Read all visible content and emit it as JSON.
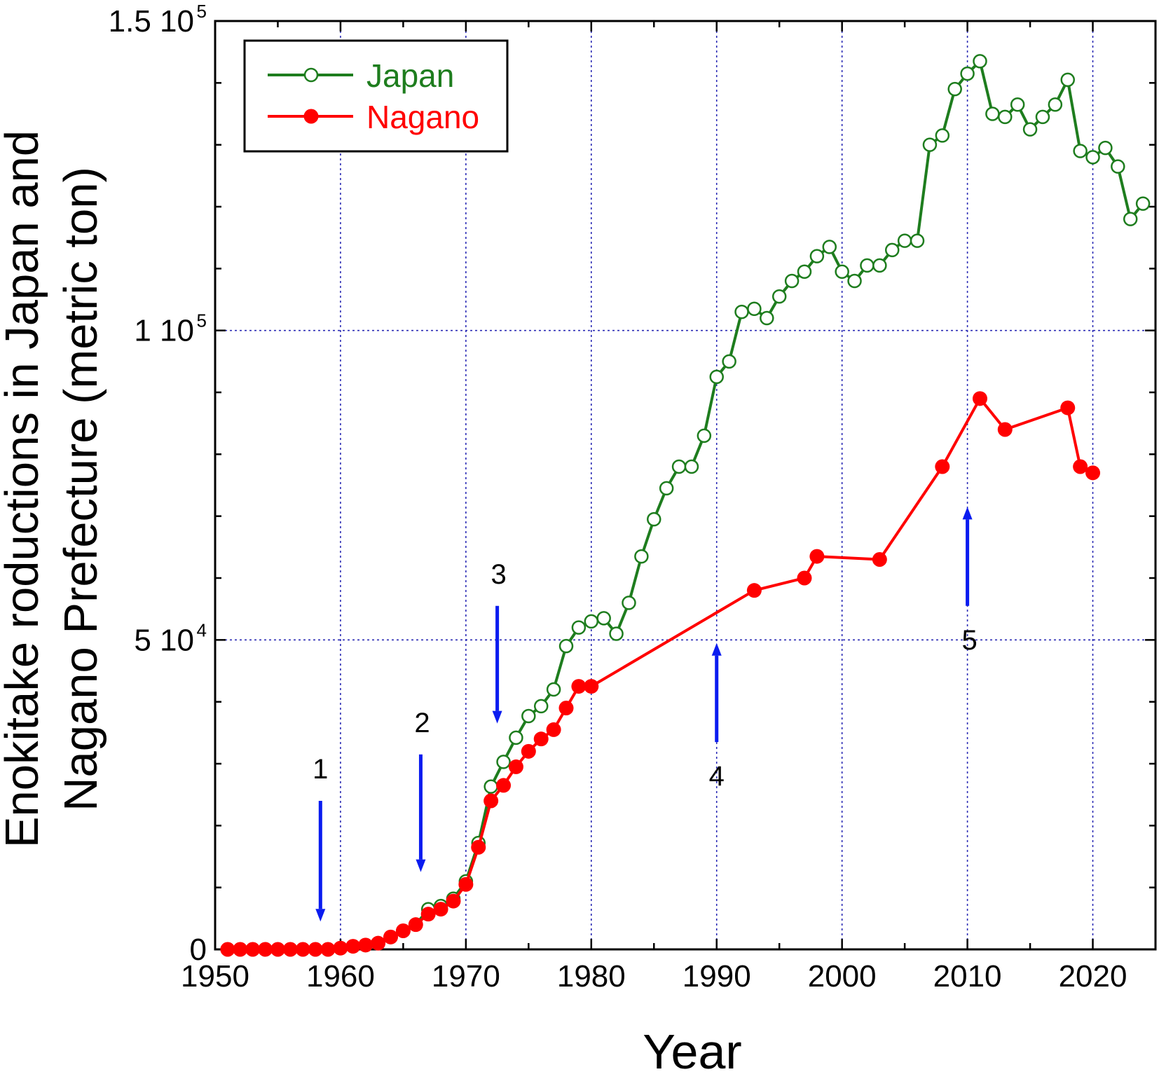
{
  "chart_data": {
    "type": "line",
    "xlabel": "Year",
    "ylabel_line1": "Enokitake roductions in Japan and",
    "ylabel_line2": "Nagano Prefecture (metric ton)",
    "xlim": [
      1950,
      2025
    ],
    "ylim": [
      0,
      150000
    ],
    "x_ticks": [
      1950,
      1960,
      1970,
      1980,
      1990,
      2000,
      2010,
      2020
    ],
    "y_ticks": [
      {
        "value": 0,
        "mantissa": "0",
        "exponent": ""
      },
      {
        "value": 50000,
        "mantissa": "5 10",
        "exponent": "4"
      },
      {
        "value": 100000,
        "mantissa": "1 10",
        "exponent": "5"
      },
      {
        "value": 150000,
        "mantissa": "1.5 10",
        "exponent": "5"
      }
    ],
    "grid": true,
    "legend_position": "top-left",
    "series": [
      {
        "name": "Japan",
        "color": "#1e7d1e",
        "marker": "open-circle",
        "points": [
          [
            1951,
            0
          ],
          [
            1952,
            0
          ],
          [
            1953,
            0
          ],
          [
            1954,
            0
          ],
          [
            1955,
            0
          ],
          [
            1956,
            0
          ],
          [
            1957,
            0
          ],
          [
            1958,
            0
          ],
          [
            1959,
            0
          ],
          [
            1960,
            200
          ],
          [
            1961,
            500
          ],
          [
            1962,
            700
          ],
          [
            1963,
            1000
          ],
          [
            1964,
            2000
          ],
          [
            1965,
            3000
          ],
          [
            1966,
            4000
          ],
          [
            1967,
            6500
          ],
          [
            1968,
            7000
          ],
          [
            1969,
            8200
          ],
          [
            1970,
            11000
          ],
          [
            1971,
            17200
          ],
          [
            1972,
            26300
          ],
          [
            1973,
            30300
          ],
          [
            1974,
            34200
          ],
          [
            1975,
            37700
          ],
          [
            1976,
            39300
          ],
          [
            1977,
            42000
          ],
          [
            1978,
            49000
          ],
          [
            1979,
            52000
          ],
          [
            1980,
            53000
          ],
          [
            1981,
            53500
          ],
          [
            1982,
            51000
          ],
          [
            1983,
            56000
          ],
          [
            1984,
            63500
          ],
          [
            1985,
            69500
          ],
          [
            1986,
            74500
          ],
          [
            1987,
            78000
          ],
          [
            1988,
            78000
          ],
          [
            1989,
            83000
          ],
          [
            1990,
            92500
          ],
          [
            1991,
            95000
          ],
          [
            1992,
            103000
          ],
          [
            1993,
            103500
          ],
          [
            1994,
            102000
          ],
          [
            1995,
            105500
          ],
          [
            1996,
            108000
          ],
          [
            1997,
            109500
          ],
          [
            1998,
            112000
          ],
          [
            1999,
            113500
          ],
          [
            2000,
            109500
          ],
          [
            2001,
            108000
          ],
          [
            2002,
            110500
          ],
          [
            2003,
            110500
          ],
          [
            2004,
            113000
          ],
          [
            2005,
            114500
          ],
          [
            2006,
            114500
          ],
          [
            2007,
            130000
          ],
          [
            2008,
            131500
          ],
          [
            2009,
            139000
          ],
          [
            2010,
            141500
          ],
          [
            2011,
            143500
          ],
          [
            2012,
            135000
          ],
          [
            2013,
            134500
          ],
          [
            2014,
            136500
          ],
          [
            2015,
            132500
          ],
          [
            2016,
            134500
          ],
          [
            2017,
            136500
          ],
          [
            2018,
            140500
          ],
          [
            2019,
            129000
          ],
          [
            2020,
            128000
          ],
          [
            2021,
            129500
          ],
          [
            2022,
            126500
          ],
          [
            2023,
            118000
          ],
          [
            2024,
            120500
          ]
        ]
      },
      {
        "name": "Nagano",
        "color": "#ff0000",
        "marker": "filled-circle",
        "points": [
          [
            1951,
            0
          ],
          [
            1952,
            0
          ],
          [
            1953,
            0
          ],
          [
            1954,
            0
          ],
          [
            1955,
            0
          ],
          [
            1956,
            0
          ],
          [
            1957,
            0
          ],
          [
            1958,
            0
          ],
          [
            1959,
            0
          ],
          [
            1960,
            200
          ],
          [
            1961,
            500
          ],
          [
            1962,
            700
          ],
          [
            1963,
            1000
          ],
          [
            1964,
            2000
          ],
          [
            1965,
            3000
          ],
          [
            1966,
            4000
          ],
          [
            1967,
            5700
          ],
          [
            1968,
            6500
          ],
          [
            1969,
            7800
          ],
          [
            1970,
            10500
          ],
          [
            1971,
            16500
          ],
          [
            1972,
            24000
          ],
          [
            1973,
            26500
          ],
          [
            1974,
            29500
          ],
          [
            1975,
            32000
          ],
          [
            1976,
            34000
          ],
          [
            1977,
            35500
          ],
          [
            1978,
            39000
          ],
          [
            1979,
            42500
          ],
          [
            1980,
            42500
          ],
          [
            1993,
            58000
          ],
          [
            1997,
            60000
          ],
          [
            1998,
            63500
          ],
          [
            2003,
            63000
          ],
          [
            2008,
            78000
          ],
          [
            2011,
            89000
          ],
          [
            2013,
            84000
          ],
          [
            2018,
            87500
          ],
          [
            2019,
            78000
          ],
          [
            2020,
            77000
          ]
        ]
      }
    ],
    "annotations": [
      {
        "label": "1",
        "x": 1958.4,
        "direction": "down",
        "y_from": 24000,
        "y_to": 4500
      },
      {
        "label": "2",
        "x": 1966.4,
        "direction": "down",
        "y_from": 31500,
        "y_to": 12500
      },
      {
        "label": "3",
        "x": 1972.5,
        "direction": "down",
        "y_from": 55500,
        "y_to": 36500
      },
      {
        "label": "4",
        "x": 1990.0,
        "direction": "up",
        "y_from": 33500,
        "y_to": 49500
      },
      {
        "label": "5",
        "x": 2010.0,
        "direction": "up",
        "y_from": 55500,
        "y_to": 71500
      }
    ]
  }
}
